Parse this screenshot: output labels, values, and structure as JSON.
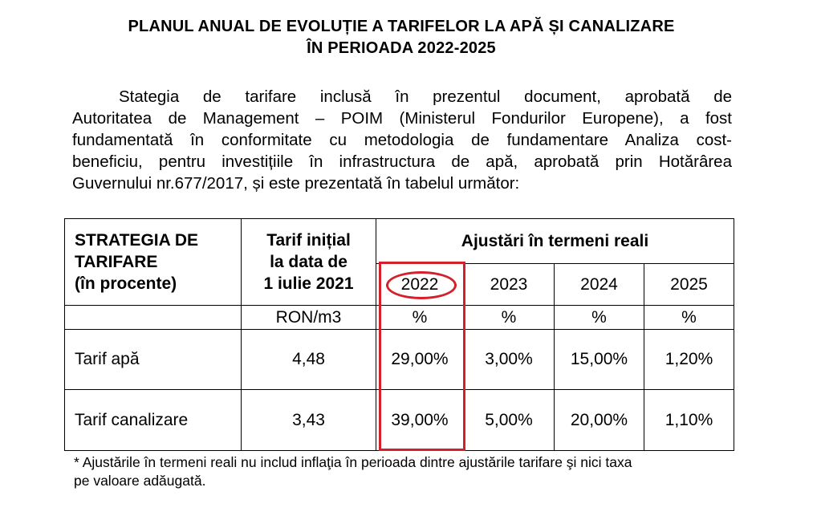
{
  "document": {
    "title_line1": "PLANUL ANUAL DE EVOLUȚIE A TARIFELOR LA APĂ ȘI CANALIZARE",
    "title_line2": "ÎN PERIOADA 2022-2025",
    "paragraph_lines": [
      "Stategia de tarifare inclusă în prezentul document, aprobată de",
      "Autoritatea de Management – POIM (Ministerul Fondurilor Europene), a fost",
      "fundamentată în conformitate cu metodologia de fundamentare Analiza cost-",
      "beneficiu, pentru investițiile în infrastructura de apă, aprobată prin Hotărârea",
      "Guvernului nr.677/2017, și este prezentată în tabelul următor:"
    ],
    "footnote_line1": "* Ajustările în termeni reali nu includ inflaţia în perioada dintre ajustările tarifare şi nici taxa",
    "footnote_line2": "pe valoare adăugată."
  },
  "table": {
    "strategy_header": [
      "STRATEGIA DE",
      "TARIFARE",
      "(în procente)"
    ],
    "initial_tariff_header": [
      "Tarif inițial",
      "la data de",
      "1 iulie 2021"
    ],
    "adjustments_header": "Ajustări în termeni reali",
    "years": [
      "2022",
      "2023",
      "2024",
      "2025"
    ],
    "units": [
      "RON/m3",
      "%",
      "%",
      "%",
      "%"
    ],
    "rows": [
      {
        "label": "Tarif apă",
        "initial": "4,48",
        "values": [
          "29,00%",
          "3,00%",
          "15,00%",
          "1,20%"
        ]
      },
      {
        "label": "Tarif canalizare",
        "initial": "3,43",
        "values": [
          "39,00%",
          "5,00%",
          "20,00%",
          "1,10%"
        ]
      }
    ]
  },
  "highlight_color": "#d3202a"
}
